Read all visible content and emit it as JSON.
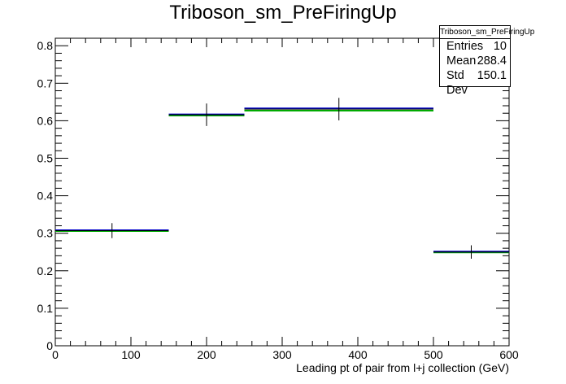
{
  "chart_data": {
    "type": "histogram",
    "title": "Triboson_sm_PreFiringUp",
    "xlabel": "Leading pt of pair from l+j collection (GeV)",
    "ylabel": "",
    "xlim": [
      0,
      600
    ],
    "ylim": [
      0,
      0.82
    ],
    "x_ticks": [
      0,
      100,
      200,
      300,
      400,
      500,
      600
    ],
    "y_ticks": [
      0,
      0.1,
      0.2,
      0.3,
      0.4,
      0.5,
      0.6,
      0.7,
      0.8
    ],
    "x_tick_labels": [
      "0",
      "100",
      "200",
      "300",
      "400",
      "500",
      "600"
    ],
    "y_tick_labels": [
      "0",
      "0.1",
      "0.2",
      "0.3",
      "0.4",
      "0.5",
      "0.6",
      "0.7",
      "0.8"
    ],
    "grid": false,
    "bins": [
      {
        "xlow": 0,
        "xhigh": 150,
        "value": 0.307,
        "error": 0.02
      },
      {
        "xlow": 150,
        "xhigh": 250,
        "value": 0.616,
        "error": 0.03
      },
      {
        "xlow": 250,
        "xhigh": 500,
        "value": 0.631,
        "error": 0.03
      },
      {
        "xlow": 500,
        "xhigh": 600,
        "value": 0.25,
        "error": 0.018
      }
    ],
    "overlay_lines": [
      {
        "color": "#00aa00",
        "values": [
          0.306,
          0.614,
          0.627,
          0.249
        ]
      },
      {
        "color": "#0000cc",
        "values": [
          0.308,
          0.617,
          0.633,
          0.251
        ]
      }
    ],
    "stats": {
      "header": "Triboson_sm_PreFiringUp",
      "rows": [
        {
          "label": "Entries",
          "value": "10"
        },
        {
          "label": "Mean",
          "value": "288.4"
        },
        {
          "label": "Std Dev",
          "value": "150.1"
        }
      ]
    }
  }
}
